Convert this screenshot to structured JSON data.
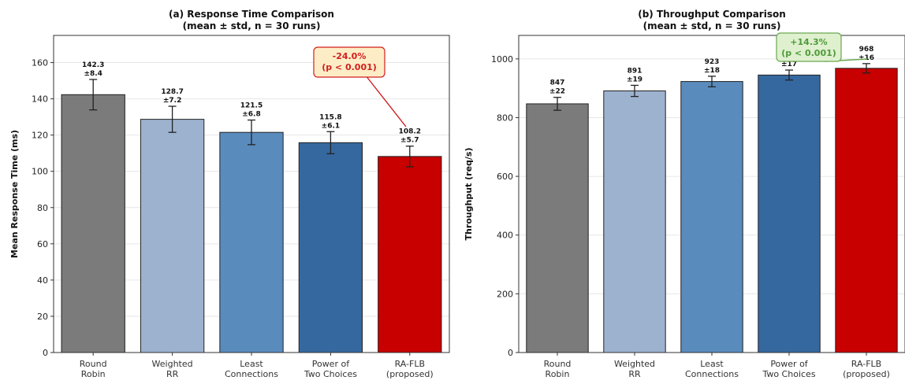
{
  "chart_data": [
    {
      "type": "bar",
      "title": "(a) Response Time Comparison",
      "subtitle": "(mean ± std, n = 30 runs)",
      "xlabel": "",
      "ylabel": "Mean Response Time (ms)",
      "ylim": [
        0,
        175
      ],
      "yticks": [
        0,
        20,
        40,
        60,
        80,
        100,
        120,
        140,
        160
      ],
      "grid": true,
      "categories": [
        [
          "Round",
          "Robin"
        ],
        [
          "Weighted",
          "RR"
        ],
        [
          "Least",
          "Connections"
        ],
        [
          "Power of",
          "Two Choices"
        ],
        [
          "RA-FLB",
          "(proposed)"
        ]
      ],
      "values": [
        142.3,
        128.7,
        121.5,
        115.8,
        108.2
      ],
      "errors": [
        8.4,
        7.2,
        6.8,
        6.1,
        5.7
      ],
      "value_labels": [
        "142.3",
        "128.7",
        "121.5",
        "115.8",
        "108.2"
      ],
      "error_labels": [
        "±8.4",
        "±7.2",
        "±6.8",
        "±6.1",
        "±5.7"
      ],
      "colors": [
        "#7b7b7b",
        "#9db2cf",
        "#5a8bbd",
        "#35689f",
        "#c80000"
      ],
      "annotation": {
        "lines": [
          "-24.0%",
          "(p < 0.001)"
        ],
        "target_index": 4,
        "text_color": "#d21f1f",
        "box_fill": "#fdedc6",
        "border_color": "#d21f1f"
      }
    },
    {
      "type": "bar",
      "title": "(b) Throughput Comparison",
      "subtitle": "(mean ± std, n = 30 runs)",
      "xlabel": "",
      "ylabel": "Throughput (req/s)",
      "ylim": [
        0,
        1080
      ],
      "yticks": [
        0,
        200,
        400,
        600,
        800,
        1000
      ],
      "grid": true,
      "categories": [
        [
          "Round",
          "Robin"
        ],
        [
          "Weighted",
          "RR"
        ],
        [
          "Least",
          "Connections"
        ],
        [
          "Power of",
          "Two Choices"
        ],
        [
          "RA-FLB",
          "(proposed)"
        ]
      ],
      "values": [
        847,
        891,
        923,
        945,
        968
      ],
      "errors": [
        22,
        19,
        18,
        17,
        16
      ],
      "value_labels": [
        "847",
        "891",
        "923",
        "945",
        "968"
      ],
      "error_labels": [
        "±22",
        "±19",
        "±18",
        "±17",
        "±16"
      ],
      "colors": [
        "#7b7b7b",
        "#9db2cf",
        "#5a8bbd",
        "#35689f",
        "#c80000"
      ],
      "annotation": {
        "lines": [
          "+14.3%",
          "(p < 0.001)"
        ],
        "target_index": 4,
        "text_color": "#4f9a3a",
        "box_fill": "#dff0cf",
        "border_color": "#6aa84f"
      }
    }
  ]
}
